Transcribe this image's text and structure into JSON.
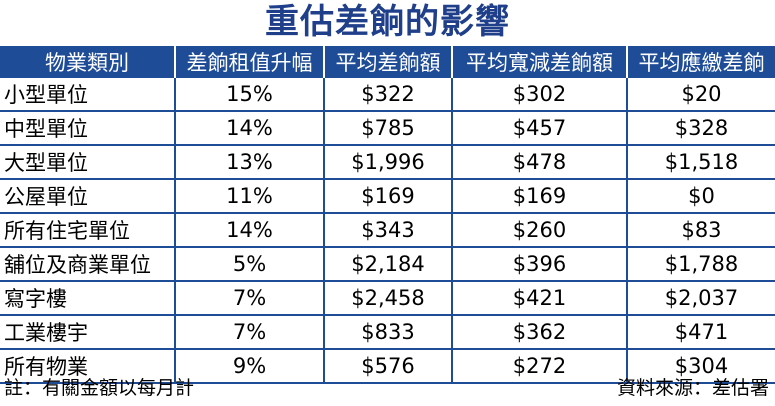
{
  "title": "重估差餉的影響",
  "table": {
    "headers": [
      "物業類別",
      "差餉租值升幅",
      "平均差餉額",
      "平均寬減差餉額",
      "平均應繳差餉"
    ],
    "rows": [
      [
        "小型單位",
        "15%",
        "$322",
        "$302",
        "$20"
      ],
      [
        "中型單位",
        "14%",
        "$785",
        "$457",
        "$328"
      ],
      [
        "大型單位",
        "13%",
        "$1,996",
        "$478",
        "$1,518"
      ],
      [
        "公屋單位",
        "11%",
        "$169",
        "$169",
        "$0"
      ],
      [
        "所有住宅單位",
        "14%",
        "$343",
        "$260",
        "$83"
      ],
      [
        "舖位及商業單位",
        "5%",
        "$2,184",
        "$396",
        "$1,788"
      ],
      [
        "寫字樓",
        "7%",
        "$2,458",
        "$421",
        "$2,037"
      ],
      [
        "工業樓宇",
        "7%",
        "$833",
        "$362",
        "$471"
      ],
      [
        "所有物業",
        "9%",
        "$576",
        "$272",
        "$304"
      ]
    ]
  },
  "footer": {
    "note": "註：有關金額以每月計",
    "source": "資料來源：差估署"
  },
  "colors": {
    "header_bg": "#1f4c97",
    "title": "#1f3f8a",
    "rule": "#1f4c97"
  }
}
